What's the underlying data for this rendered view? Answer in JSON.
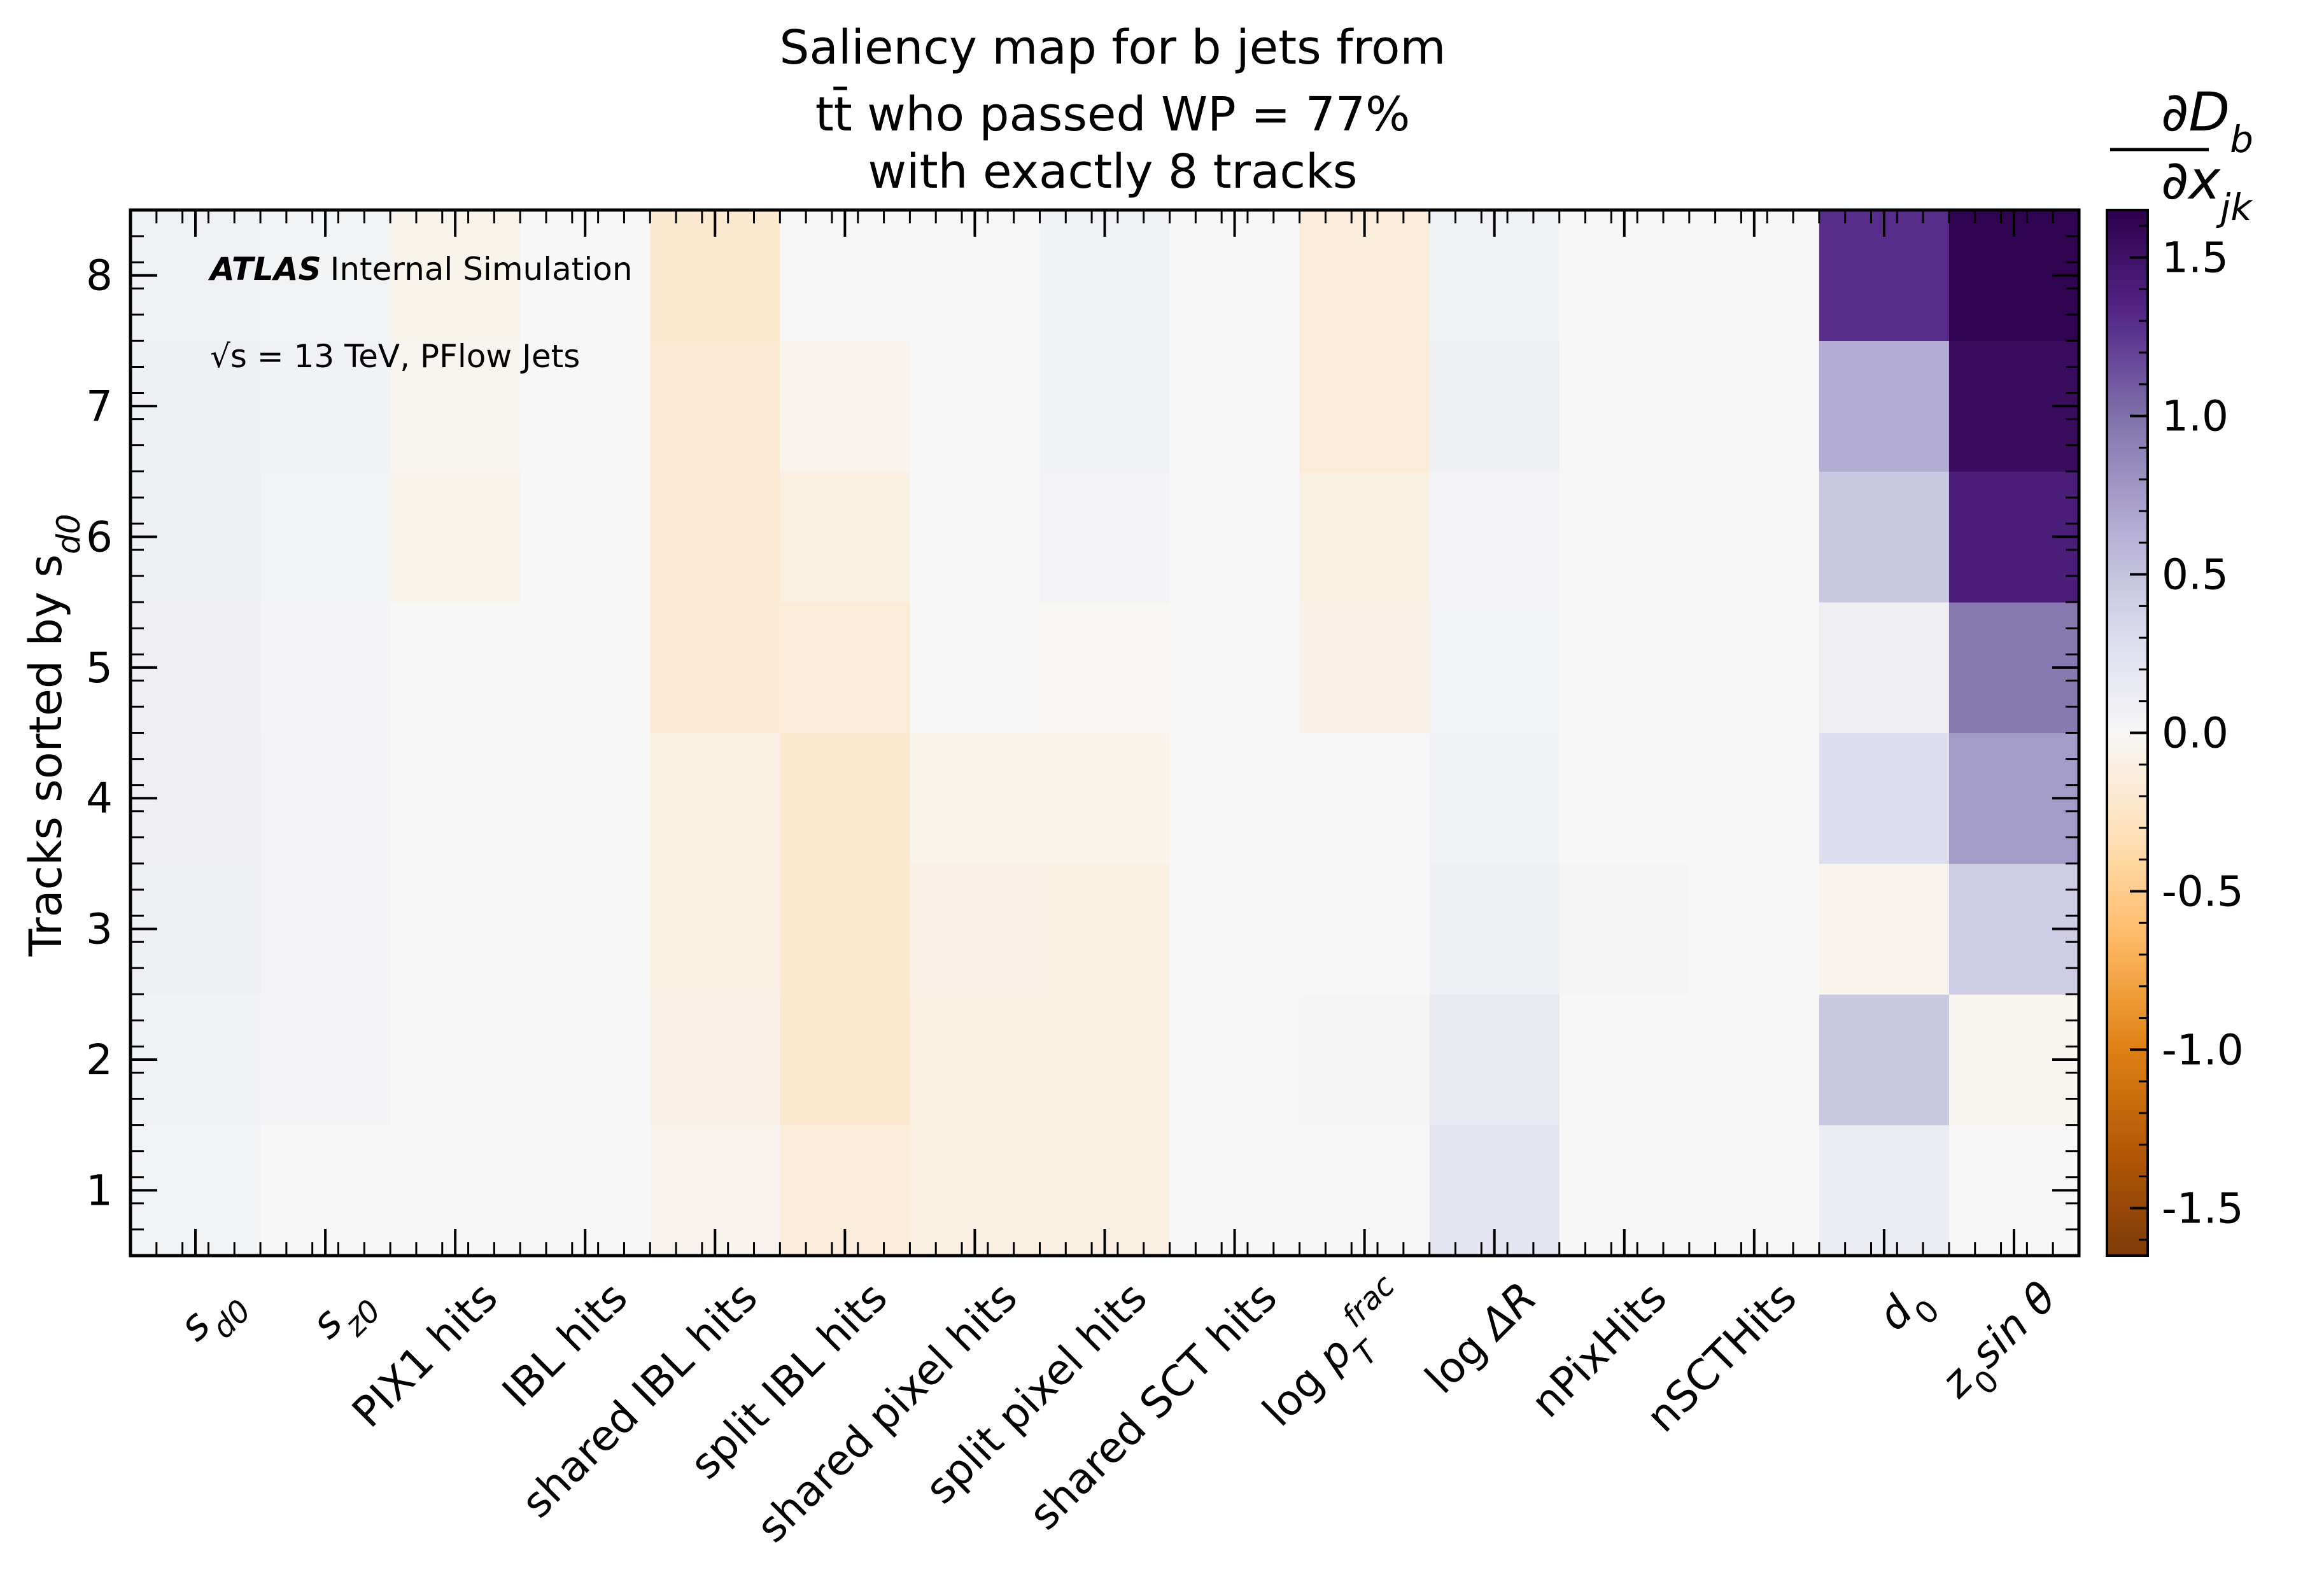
{
  "chart_data": {
    "type": "heatmap",
    "title": [
      "Saliency map for b jets from",
      "tt̄ who passed WP = 77%",
      "with exactly 8 tracks"
    ],
    "xlabel": "",
    "ylabel": "Tracks sorted by s_d0",
    "ylabel_display": "Tracks sorted by s",
    "ylabel_sub": "d0",
    "annotation": {
      "experiment": "ATLAS",
      "status": "Internal Simulation",
      "energy": "√s = 13 TeV, PFlow Jets"
    },
    "x_categories": [
      "s_d0",
      "s_z0",
      "PIX1 hits",
      "IBL hits",
      "shared IBL hits",
      "split IBL hits",
      "shared pixel hits",
      "split pixel hits",
      "shared SCT hits",
      "log p_T^frac",
      "log ΔR",
      "nPixHits",
      "nSCTHits",
      "d_0",
      "z_0 sin θ"
    ],
    "y_categories": [
      "1",
      "2",
      "3",
      "4",
      "5",
      "6",
      "7",
      "8"
    ],
    "y_ticks": [
      "1",
      "2",
      "3",
      "4",
      "5",
      "6",
      "7",
      "8"
    ],
    "values_by_track": [
      [
        0.05,
        0.0,
        0.0,
        0.0,
        -0.05,
        -0.15,
        -0.1,
        -0.1,
        0.0,
        0.0,
        0.2,
        0.0,
        0.0,
        0.12,
        0.0
      ],
      [
        0.06,
        0.04,
        0.0,
        0.0,
        -0.08,
        -0.2,
        -0.1,
        -0.1,
        0.0,
        0.02,
        0.16,
        0.0,
        0.0,
        0.45,
        -0.03
      ],
      [
        0.08,
        0.04,
        0.0,
        0.0,
        -0.1,
        -0.2,
        -0.08,
        -0.1,
        0.0,
        0.0,
        0.08,
        0.02,
        0.0,
        -0.05,
        0.42
      ],
      [
        0.1,
        0.04,
        0.0,
        0.0,
        -0.1,
        -0.2,
        -0.06,
        -0.06,
        0.0,
        0.0,
        0.06,
        0.0,
        0.0,
        0.28,
        0.75
      ],
      [
        0.1,
        0.03,
        0.0,
        0.0,
        -0.18,
        -0.16,
        0.0,
        -0.02,
        0.0,
        -0.08,
        0.05,
        0.0,
        0.0,
        0.1,
        0.95
      ],
      [
        0.08,
        0.05,
        -0.06,
        0.0,
        -0.18,
        -0.1,
        0.0,
        0.04,
        0.0,
        -0.1,
        0.04,
        0.0,
        0.0,
        0.45,
        1.4
      ],
      [
        0.08,
        0.06,
        -0.03,
        0.0,
        -0.18,
        -0.05,
        0.0,
        0.06,
        0.0,
        -0.16,
        0.08,
        0.0,
        0.0,
        0.65,
        1.55
      ],
      [
        0.07,
        0.05,
        -0.06,
        0.0,
        -0.2,
        0.0,
        0.0,
        0.06,
        0.0,
        -0.15,
        0.06,
        0.0,
        0.0,
        1.3,
        1.62
      ]
    ],
    "colorbar": {
      "label": "∂D_b / ∂x_jk",
      "label_numerator": "∂D",
      "label_numerator_sub": "b",
      "label_denominator": "∂x",
      "label_denominator_sub": "jk",
      "range": [
        -1.65,
        1.65
      ],
      "ticks": [
        "1.5",
        "1.0",
        "0.5",
        "0.0",
        "-0.5",
        "-1.0",
        "-1.5"
      ],
      "tick_values": [
        1.5,
        1.0,
        0.5,
        0.0,
        -0.5,
        -1.0,
        -1.5
      ],
      "colormap": [
        "#7f3b08",
        "#b35806",
        "#e08214",
        "#fdb863",
        "#fee0b6",
        "#f7f7f7",
        "#d8daeb",
        "#b2abd2",
        "#8073ac",
        "#542788",
        "#2d004b"
      ]
    },
    "grid": false,
    "legend": "none"
  }
}
